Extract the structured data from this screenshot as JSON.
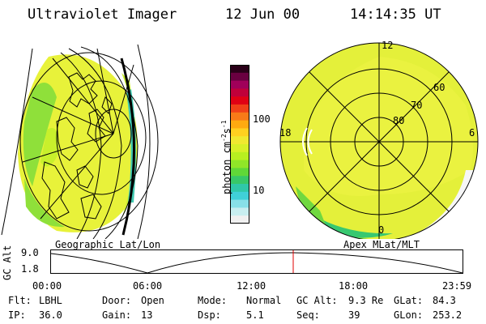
{
  "header": {
    "instrument": "Ultraviolet Imager",
    "date": "12 Jun 00",
    "time": "14:14:35 UT"
  },
  "left_panel": {
    "caption": "Geographic Lat/Lon"
  },
  "right_panel": {
    "caption": "Apex MLat/MLT",
    "mlt_labels": [
      "12",
      "18",
      "6",
      "0"
    ],
    "mlat_labels": [
      "60",
      "70",
      "80"
    ]
  },
  "colorbar": {
    "label": "photon cm",
    "label_sup1": "-2",
    "label_s": "s",
    "label_sup2": "-1",
    "ticks": [
      "100",
      "10"
    ],
    "colors": [
      "#2a0018",
      "#6a0040",
      "#a0005a",
      "#c0003a",
      "#e00014",
      "#f04018",
      "#f87a18",
      "#ffaa10",
      "#ffd020",
      "#f0e830",
      "#d8f028",
      "#b8f020",
      "#90e628",
      "#60d838",
      "#38c868",
      "#30c8a8",
      "#40d0d8",
      "#88e0e8",
      "#c8eef0",
      "#f0f0f0"
    ]
  },
  "timeline": {
    "y_label": "GC Alt",
    "y_ticks": [
      "9.0",
      "1.8"
    ],
    "x_ticks": [
      "00:00",
      "06:00",
      "12:00",
      "18:00",
      "23:59"
    ],
    "marker_color": "#e00000"
  },
  "footer": {
    "rows": [
      [
        {
          "key": "Flt:",
          "value": "LBHL"
        },
        {
          "key": "Door:",
          "value": "Open"
        },
        {
          "key": "Mode:",
          "value": "Normal"
        },
        {
          "key": "GC Alt:",
          "value": "9.3 Re"
        },
        {
          "key": "GLat:",
          "value": "84.3"
        }
      ],
      [
        {
          "key": "IP:",
          "value": "36.0"
        },
        {
          "key": "Gain:",
          "value": "13"
        },
        {
          "key": "Dsp:",
          "value": "5.1"
        },
        {
          "key": "Seq:",
          "value": "39"
        },
        {
          "key": "GLon:",
          "value": "253.2"
        }
      ]
    ]
  }
}
